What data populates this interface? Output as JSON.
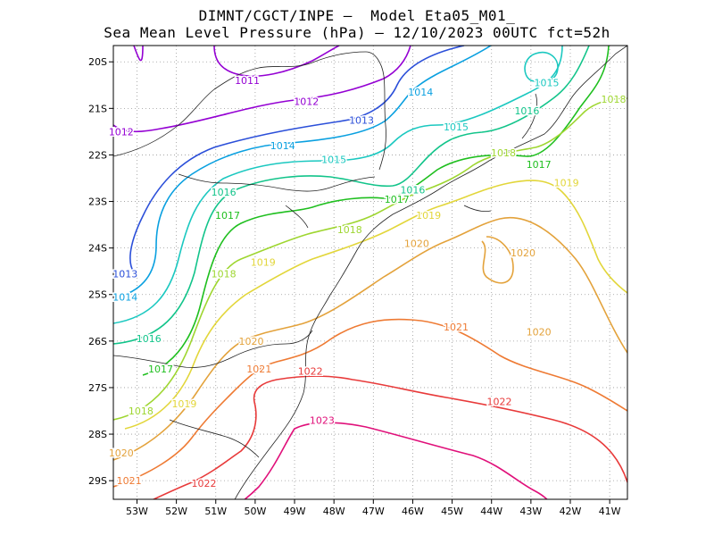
{
  "title": {
    "line1": "DIMNT/CGCT/INPE –  Model Eta05_M01_",
    "line2": "Sea Mean Level Pressure (hPa) – 12/10/2023 00UTC fct=52h"
  },
  "axes": {
    "lon_ticks": [
      "53W",
      "52W",
      "51W",
      "50W",
      "49W",
      "48W",
      "47W",
      "46W",
      "45W",
      "44W",
      "43W",
      "42W",
      "41W"
    ],
    "lat_ticks": [
      "20S",
      "21S",
      "22S",
      "23S",
      "24S",
      "25S",
      "26S",
      "27S",
      "28S",
      "29S"
    ]
  },
  "contour_labels": [
    {
      "text": "1011",
      "color": "#9400d3",
      "lon": -50.2,
      "lat": -20.4
    },
    {
      "text": "1012",
      "color": "#9400d3",
      "lon": -53.4,
      "lat": -21.5
    },
    {
      "text": "1012",
      "color": "#9400d3",
      "lon": -48.7,
      "lat": -20.85
    },
    {
      "text": "1013",
      "color": "#2b4fd9",
      "lon": -47.3,
      "lat": -21.25
    },
    {
      "text": "1013",
      "color": "#2b4fd9",
      "lon": -53.3,
      "lat": -24.55
    },
    {
      "text": "1014",
      "color": "#0aa0e0",
      "lon": -45.8,
      "lat": -20.65
    },
    {
      "text": "1014",
      "color": "#0aa0e0",
      "lon": -49.3,
      "lat": -21.8
    },
    {
      "text": "1014",
      "color": "#0aa0e0",
      "lon": -53.3,
      "lat": -25.05
    },
    {
      "text": "1015",
      "color": "#1bc8c0",
      "lon": -42.6,
      "lat": -20.45
    },
    {
      "text": "1015",
      "color": "#1bc8c0",
      "lon": -44.9,
      "lat": -21.4
    },
    {
      "text": "1015",
      "color": "#1bc8c0",
      "lon": -48.0,
      "lat": -22.1
    },
    {
      "text": "1016",
      "color": "#12c48a",
      "lon": -43.1,
      "lat": -21.05
    },
    {
      "text": "1016",
      "color": "#12c48a",
      "lon": -46.0,
      "lat": -22.75
    },
    {
      "text": "1016",
      "color": "#12c48a",
      "lon": -50.8,
      "lat": -22.8
    },
    {
      "text": "1016",
      "color": "#12c48a",
      "lon": -52.7,
      "lat": -25.95
    },
    {
      "text": "1017",
      "color": "#1fbf1f",
      "lon": -42.8,
      "lat": -22.2
    },
    {
      "text": "1017",
      "color": "#1fbf1f",
      "lon": -46.4,
      "lat": -22.95
    },
    {
      "text": "1017",
      "color": "#1fbf1f",
      "lon": -50.7,
      "lat": -23.3
    },
    {
      "text": "1017",
      "color": "#1fbf1f",
      "lon": -52.4,
      "lat": -26.6
    },
    {
      "text": "1018",
      "color": "#9ed630",
      "lon": -40.9,
      "lat": -20.8
    },
    {
      "text": "1018",
      "color": "#9ed630",
      "lon": -43.7,
      "lat": -21.95
    },
    {
      "text": "1018",
      "color": "#9ed630",
      "lon": -47.6,
      "lat": -23.6
    },
    {
      "text": "1018",
      "color": "#9ed630",
      "lon": -50.8,
      "lat": -24.55
    },
    {
      "text": "1018",
      "color": "#9ed630",
      "lon": -52.9,
      "lat": -27.5
    },
    {
      "text": "1019",
      "color": "#e2d63a",
      "lon": -42.1,
      "lat": -22.6
    },
    {
      "text": "1019",
      "color": "#e2d63a",
      "lon": -45.6,
      "lat": -23.3
    },
    {
      "text": "1019",
      "color": "#e2d63a",
      "lon": -49.8,
      "lat": -24.3
    },
    {
      "text": "1019",
      "color": "#e2d63a",
      "lon": -51.8,
      "lat": -27.35
    },
    {
      "text": "1020",
      "color": "#e3a23b",
      "lon": -43.2,
      "lat": -24.1
    },
    {
      "text": "1020",
      "color": "#e3a23b",
      "lon": -42.8,
      "lat": -25.8
    },
    {
      "text": "1020",
      "color": "#e3a23b",
      "lon": -45.9,
      "lat": -23.9
    },
    {
      "text": "1020",
      "color": "#e3a23b",
      "lon": -50.1,
      "lat": -26.0
    },
    {
      "text": "1020",
      "color": "#e3a23b",
      "lon": -53.4,
      "lat": -28.4
    },
    {
      "text": "1021",
      "color": "#ee7a33",
      "lon": -44.9,
      "lat": -25.7
    },
    {
      "text": "1021",
      "color": "#ee7a33",
      "lon": -49.9,
      "lat": -26.6
    },
    {
      "text": "1021",
      "color": "#ee7a33",
      "lon": -53.2,
      "lat": -29.0
    },
    {
      "text": "1022",
      "color": "#e83a3a",
      "lon": -48.6,
      "lat": -26.65
    },
    {
      "text": "1022",
      "color": "#e83a3a",
      "lon": -43.8,
      "lat": -27.3
    },
    {
      "text": "1022",
      "color": "#e83a3a",
      "lon": -51.3,
      "lat": -29.05
    },
    {
      "text": "1023",
      "color": "#e0107a",
      "lon": -48.3,
      "lat": -27.7
    }
  ],
  "colors": {
    "c1011": "#9400d3",
    "c1012": "#9400d3",
    "c1013": "#2b4fd9",
    "c1014": "#0aa0e0",
    "c1015": "#1bc8c0",
    "c1016": "#12c48a",
    "c1017": "#1fbf1f",
    "c1018": "#9ed630",
    "c1019": "#e2d63a",
    "c1020": "#e3a23b",
    "c1021": "#ee7a33",
    "c1022": "#e83a3a",
    "c1023": "#e0107a"
  }
}
